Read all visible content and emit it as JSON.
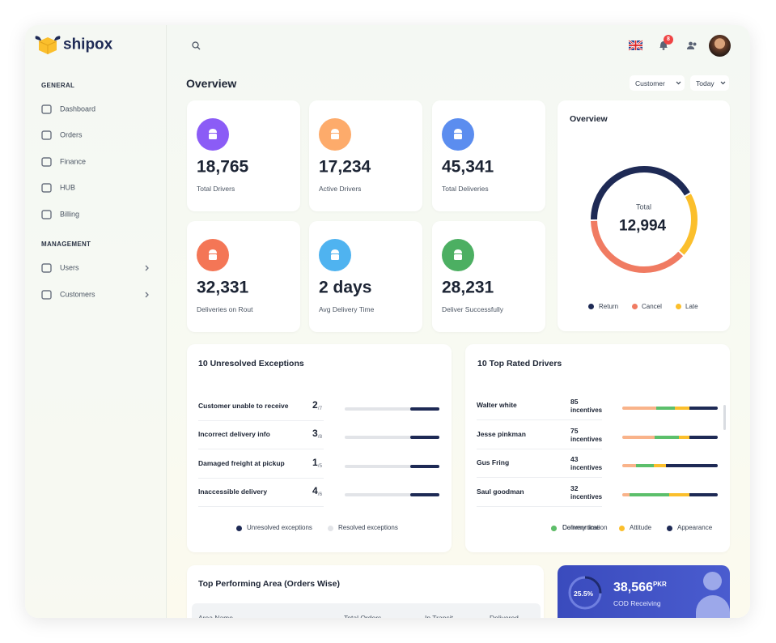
{
  "sidebar": {
    "brand": "shipox",
    "sections": [
      {
        "title": "GENERAL",
        "items": [
          "Dashboard",
          "Orders",
          "Finance",
          "HUB",
          "Billing"
        ]
      },
      {
        "title": "MANAGEMENT",
        "items": [
          "Users",
          "Customers"
        ]
      }
    ]
  },
  "topbar": {
    "notification_count": 8
  },
  "page_title": "Overview",
  "filters": [
    "Customer",
    "Today"
  ],
  "stats": [
    {
      "value": "18,765",
      "label": "Total Drivers",
      "color": "#8b5cf6"
    },
    {
      "value": "17,234",
      "label": "Active Drivers",
      "color": "#fdab6b"
    },
    {
      "value": "45,341",
      "label": "Total Deliveries",
      "color": "#5b8def"
    },
    {
      "value": "32,331",
      "label": "Deliveries on Rout",
      "color": "#f47656"
    },
    {
      "value": "2 days",
      "label": "Avg Delivery Time",
      "color": "#4fb3f0"
    },
    {
      "value": "28,231",
      "label": "Deliver Successfully",
      "color": "#4caf62"
    }
  ],
  "overview_chart": {
    "type": "donut",
    "title": "Overview",
    "center_label": "Total",
    "total": "12,994",
    "series": [
      {
        "name": "Return",
        "color": "#1e2a55",
        "value": 42
      },
      {
        "name": "Cancel",
        "color": "#f07b62",
        "value": 38
      },
      {
        "name": "Late",
        "color": "#fbbf2c",
        "value": 20
      }
    ]
  },
  "exceptions": {
    "title": "10 Unresolved Exceptions",
    "rows": [
      {
        "label": "Customer unable to receive",
        "count": "2",
        "total": "/7"
      },
      {
        "label": "Incorrect delivery info",
        "count": "3",
        "total": "/8"
      },
      {
        "label": "Damaged freight at pickup",
        "count": "1",
        "total": "/5"
      },
      {
        "label": "Inaccessible delivery",
        "count": "4",
        "total": "/6"
      }
    ],
    "legend": [
      {
        "name": "Unresolved exceptions",
        "color": "#1e2a55"
      },
      {
        "name": "Resolved exceptions",
        "color": "#e2e4e8"
      }
    ]
  },
  "drivers": {
    "type": "stacked-bar",
    "title": "10 Top Rated Drivers",
    "unit": "incentives",
    "series": [
      {
        "name": "Communication",
        "color": "#f9b38a"
      },
      {
        "name": "Delivery time",
        "color": "#5cbf6b"
      },
      {
        "name": "Attitude",
        "color": "#fbbf2c"
      },
      {
        "name": "Appearance",
        "color": "#1e2a55"
      }
    ],
    "rows": [
      {
        "name": "Walter white",
        "incentives": 85,
        "values": [
          36,
          19,
          15,
          30
        ]
      },
      {
        "name": "Jesse pinkman",
        "incentives": 75,
        "values": [
          34,
          25,
          11,
          30
        ]
      },
      {
        "name": "Gus Fring",
        "incentives": 43,
        "values": [
          14,
          19,
          13,
          54
        ]
      },
      {
        "name": "Saul goodman",
        "incentives": 32,
        "values": [
          8,
          41,
          21,
          30
        ]
      }
    ]
  },
  "area_table": {
    "title": "Top Performing Area (Orders Wise)",
    "columns": [
      "Area Name",
      "Total Orders",
      "In Transit",
      "Delivered"
    ]
  },
  "cod": {
    "percent": 25.5,
    "percent_label": "25.5%",
    "amount": "38,566",
    "currency": "PKR",
    "label": "COD Receiving"
  }
}
